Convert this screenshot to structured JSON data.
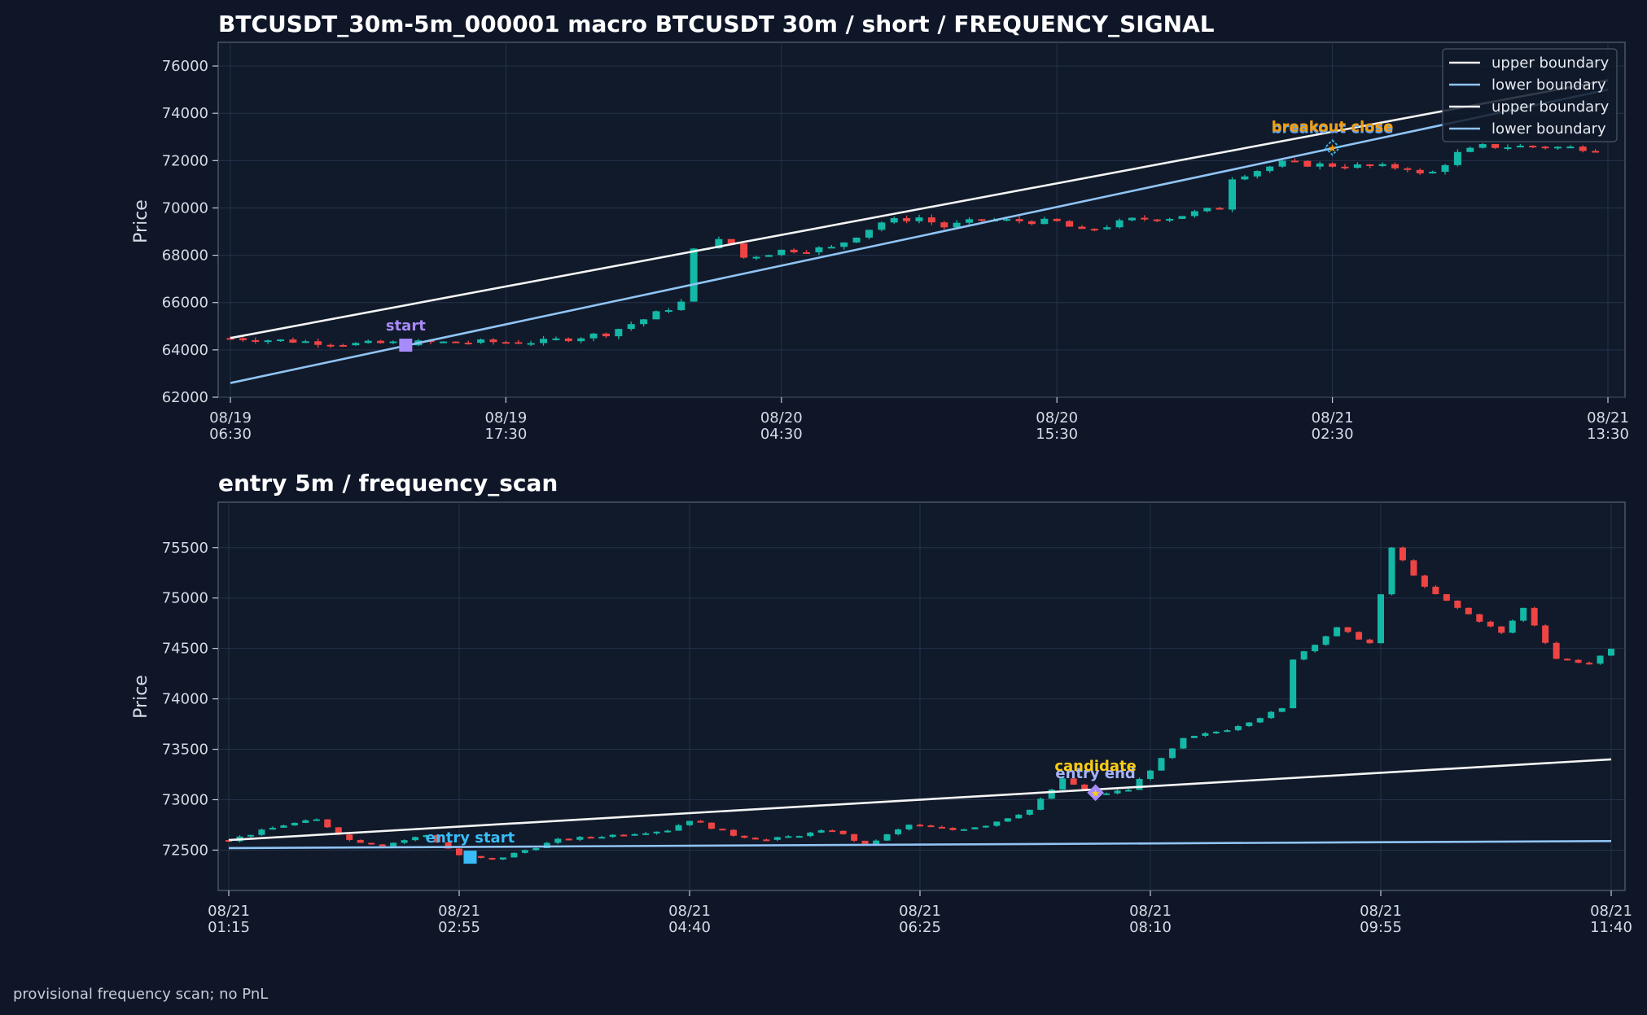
{
  "footer": "provisional frequency scan; no PnL",
  "colors": {
    "background": "#0e1628",
    "panel": "#111a2a",
    "up": "#14b8a6",
    "down": "#ef4444",
    "upper_boundary": "#f5f5f5",
    "lower_boundary": "#90c4f5",
    "start_marker": "#a78bfa",
    "entry_start_marker": "#38bdf8",
    "breakout": "#f59e0b",
    "candidate": "#facc15"
  },
  "chart_data": [
    {
      "type": "candlestick",
      "title": "BTCUSDT_30m-5m_000001 macro BTCUSDT 30m / short / FREQUENCY_SIGNAL",
      "ylabel": "Price",
      "ylim": [
        62000,
        77000
      ],
      "yticks": [
        62000,
        64000,
        66000,
        68000,
        70000,
        72000,
        74000,
        76000
      ],
      "xticks": [
        {
          "line1": "08/19",
          "line2": "06:30"
        },
        {
          "line1": "08/19",
          "line2": "17:30"
        },
        {
          "line1": "08/20",
          "line2": "04:30"
        },
        {
          "line1": "08/20",
          "line2": "15:30"
        },
        {
          "line1": "08/21",
          "line2": "02:30"
        },
        {
          "line1": "08/21",
          "line2": "13:30"
        }
      ],
      "candle_count": 110,
      "close_path": [
        [
          0,
          64500
        ],
        [
          10,
          64250
        ],
        [
          14,
          64300
        ],
        [
          25,
          64350
        ],
        [
          30,
          64700
        ],
        [
          33,
          65300
        ],
        [
          36,
          66000
        ],
        [
          37,
          68200
        ],
        [
          39,
          68600
        ],
        [
          40,
          68500
        ],
        [
          41,
          67900
        ],
        [
          44,
          68200
        ],
        [
          48,
          68300
        ],
        [
          52,
          69400
        ],
        [
          55,
          69600
        ],
        [
          57,
          69200
        ],
        [
          60,
          69500
        ],
        [
          66,
          69400
        ],
        [
          68,
          69000
        ],
        [
          72,
          69500
        ],
        [
          75,
          69600
        ],
        [
          79,
          70000
        ],
        [
          80,
          71300
        ],
        [
          84,
          71900
        ],
        [
          88,
          71800
        ],
        [
          94,
          71700
        ],
        [
          95,
          71400
        ],
        [
          96,
          71500
        ],
        [
          98,
          72300
        ],
        [
          100,
          72600
        ],
        [
          104,
          72600
        ],
        [
          110,
          72500
        ],
        [
          114,
          73000
        ],
        [
          117,
          73800
        ],
        [
          122,
          74600
        ],
        [
          132,
          75000
        ]
      ],
      "legend": [
        "upper boundary",
        "lower boundary",
        "upper boundary",
        "lower boundary"
      ],
      "legend_position": "top-right",
      "upper_boundary": {
        "from": [
          0,
          64500
        ],
        "to": [
          110,
          75400
        ]
      },
      "lower_boundary": {
        "from": [
          0,
          62600
        ],
        "to": [
          110,
          75000
        ]
      },
      "annotations": [
        {
          "label": "start",
          "x": 14,
          "y": 64200,
          "marker": "square"
        },
        {
          "label": "breakout close",
          "x": 88,
          "y": 72550,
          "marker": "diamond"
        },
        {
          "label": "breakout close",
          "x": 88,
          "y": 72550,
          "marker": "star"
        }
      ]
    },
    {
      "type": "candlestick",
      "title": "entry 5m / frequency_scan",
      "ylabel": "Price",
      "ylim": [
        72100,
        75950
      ],
      "yticks": [
        72500,
        73000,
        73500,
        74000,
        74500,
        75000,
        75500
      ],
      "xticks": [
        {
          "line1": "08/21",
          "line2": "01:15"
        },
        {
          "line1": "08/21",
          "line2": "02:55"
        },
        {
          "line1": "08/21",
          "line2": "04:40"
        },
        {
          "line1": "08/21",
          "line2": "06:25"
        },
        {
          "line1": "08/21",
          "line2": "08:10"
        },
        {
          "line1": "08/21",
          "line2": "09:55"
        },
        {
          "line1": "08/21",
          "line2": "11:40"
        }
      ],
      "candle_count": 127,
      "close_path": [
        [
          0,
          72600
        ],
        [
          5,
          72750
        ],
        [
          8,
          72800
        ],
        [
          11,
          72600
        ],
        [
          14,
          72550
        ],
        [
          18,
          72650
        ],
        [
          21,
          72450
        ],
        [
          24,
          72400
        ],
        [
          27,
          72500
        ],
        [
          30,
          72600
        ],
        [
          35,
          72650
        ],
        [
          40,
          72700
        ],
        [
          42,
          72800
        ],
        [
          46,
          72650
        ],
        [
          49,
          72600
        ],
        [
          55,
          72700
        ],
        [
          58,
          72550
        ],
        [
          62,
          72750
        ],
        [
          66,
          72700
        ],
        [
          69,
          72750
        ],
        [
          73,
          72900
        ],
        [
          76,
          73200
        ],
        [
          79,
          73050
        ],
        [
          82,
          73100
        ],
        [
          84,
          73300
        ],
        [
          87,
          73600
        ],
        [
          91,
          73700
        ],
        [
          96,
          73900
        ],
        [
          97,
          74400
        ],
        [
          101,
          74700
        ],
        [
          104,
          74550
        ],
        [
          106,
          75500
        ],
        [
          109,
          75100
        ],
        [
          112,
          74900
        ],
        [
          116,
          74650
        ],
        [
          118,
          74900
        ],
        [
          121,
          74400
        ],
        [
          124,
          74350
        ],
        [
          127,
          74550
        ],
        [
          131,
          74550
        ]
      ],
      "upper_boundary": {
        "from": [
          0,
          72600
        ],
        "to": [
          126,
          73400
        ]
      },
      "lower_boundary": {
        "from": [
          0,
          72520
        ],
        "to": [
          126,
          72590
        ]
      },
      "annotations": [
        {
          "label": "entry start",
          "x": 22,
          "y": 72430,
          "marker": "square"
        },
        {
          "label": "entry end",
          "x": 79,
          "y": 73070,
          "marker": "diamond"
        },
        {
          "label": "candidate",
          "x": 79,
          "y": 73070,
          "marker": "star"
        }
      ]
    }
  ]
}
